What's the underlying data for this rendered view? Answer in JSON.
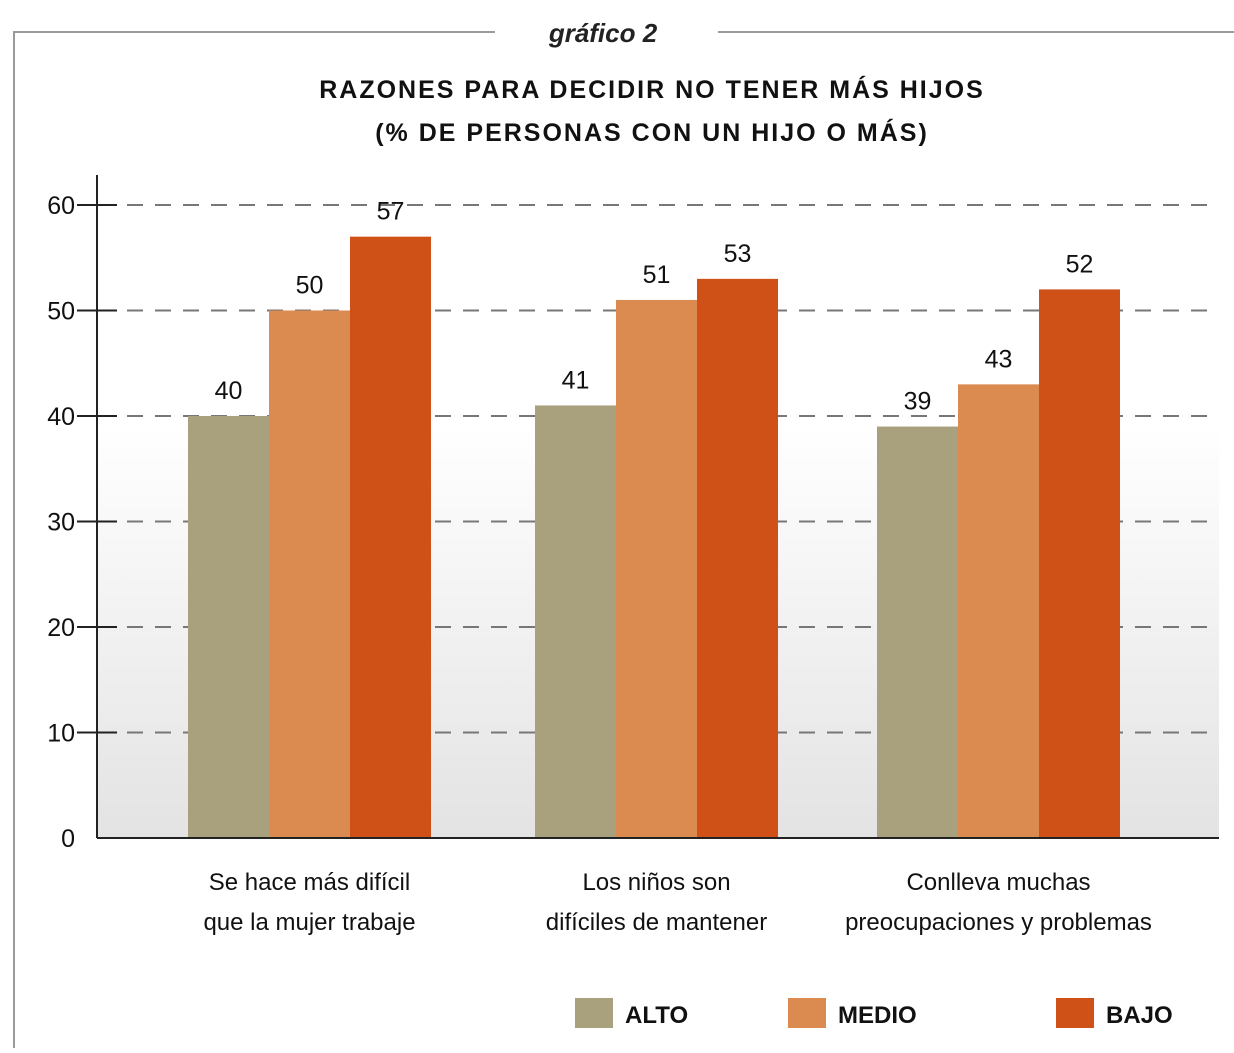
{
  "header": {
    "figure_label": "gráfico 2"
  },
  "chart_data": {
    "type": "bar",
    "title": "RAZONES PARA DECIDIR NO TENER MÁS HIJOS",
    "subtitle": "(% DE PERSONAS CON UN HIJO O MÁS)",
    "xlabel": "",
    "ylabel": "",
    "ylim": [
      0,
      60
    ],
    "yticks": [
      0,
      10,
      20,
      30,
      40,
      50,
      60
    ],
    "grid": true,
    "legend_position": "bottom",
    "categories": [
      [
        "Se hace más difícil",
        "que la mujer trabaje"
      ],
      [
        "Los niños son",
        "difíciles de mantener"
      ],
      [
        "Conlleva muchas",
        "preocupaciones y problemas"
      ]
    ],
    "series": [
      {
        "name": "ALTO",
        "color": "#a9a07d",
        "values": [
          40,
          41,
          39
        ]
      },
      {
        "name": "MEDIO",
        "color": "#db8a50",
        "values": [
          50,
          51,
          43
        ]
      },
      {
        "name": "BAJO",
        "color": "#d05118",
        "values": [
          57,
          53,
          52
        ]
      }
    ],
    "data_labels": true
  }
}
